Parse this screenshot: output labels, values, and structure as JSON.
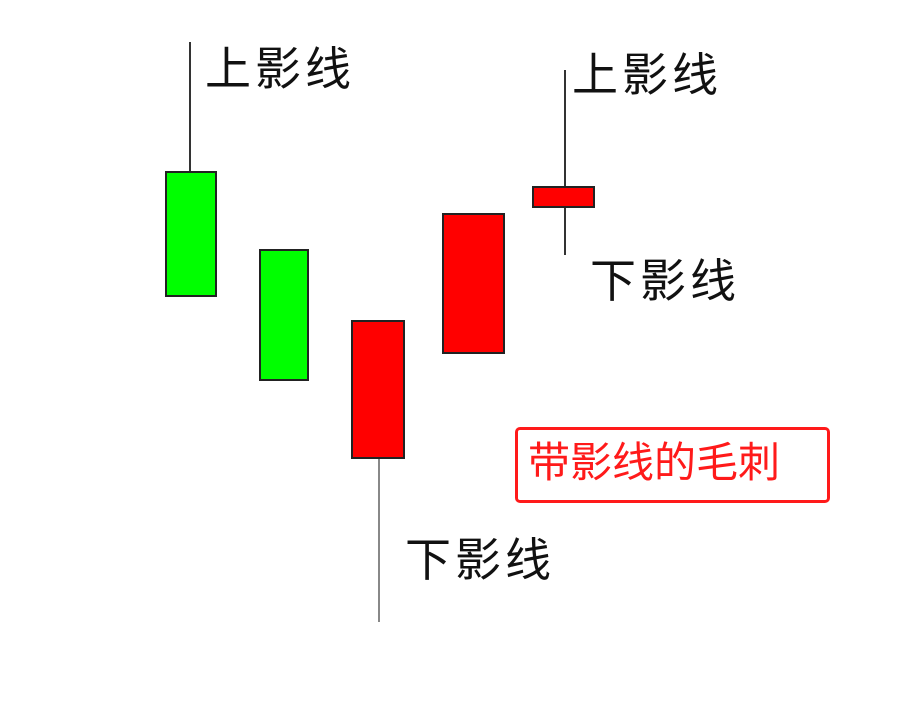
{
  "labels": {
    "upper_shadow_1": "上影线",
    "upper_shadow_2": "上影线",
    "lower_shadow_1": "下影线",
    "lower_shadow_2": "下影线"
  },
  "callout": "带影线的毛刺",
  "colors": {
    "bearish_candle": "#00ff00",
    "bullish_candle": "#ff0000",
    "callout": "#ff1a1a",
    "wick": "#333333"
  },
  "candles": [
    {
      "color": "green",
      "upper_shadow": true,
      "lower_shadow": false
    },
    {
      "color": "green",
      "upper_shadow": false,
      "lower_shadow": false
    },
    {
      "color": "red",
      "upper_shadow": false,
      "lower_shadow": true
    },
    {
      "color": "red",
      "upper_shadow": false,
      "lower_shadow": false
    },
    {
      "color": "red",
      "upper_shadow": true,
      "lower_shadow": true
    }
  ]
}
